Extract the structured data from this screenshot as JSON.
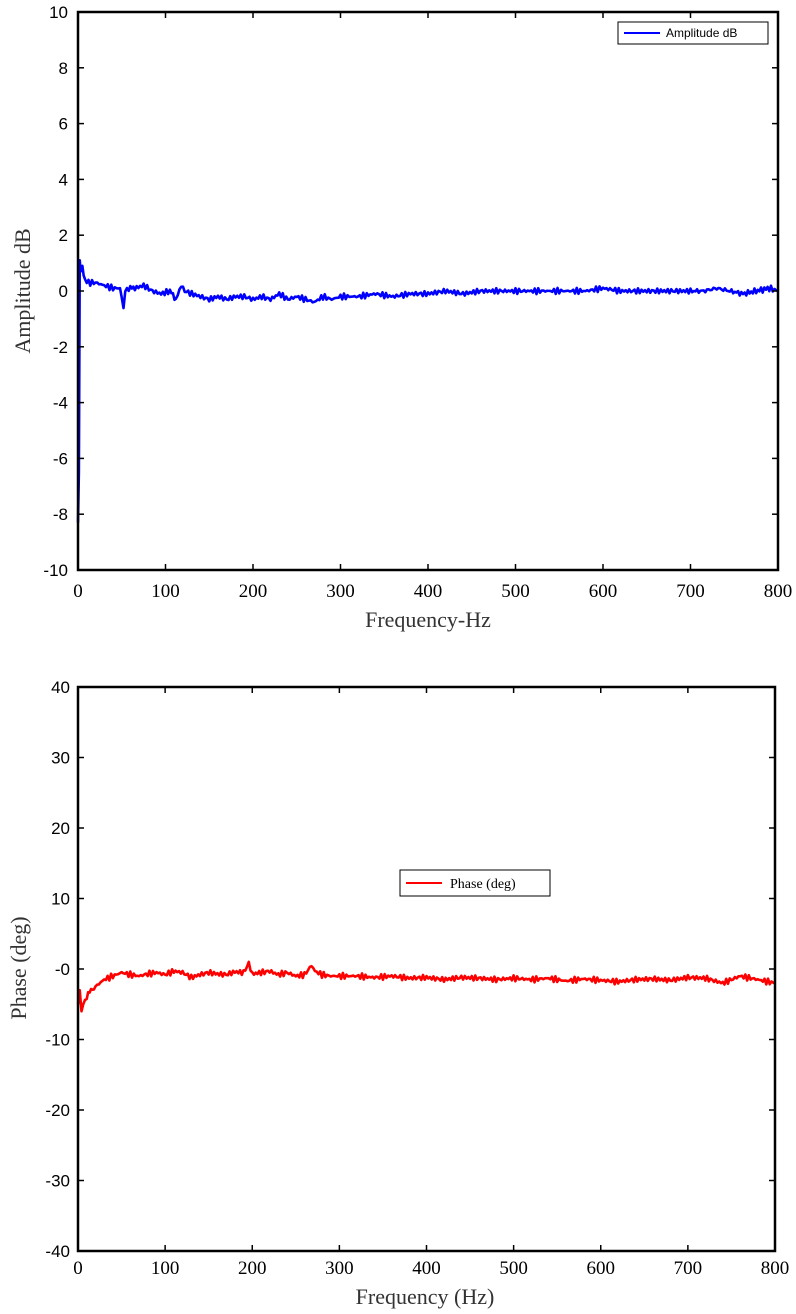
{
  "chart_data": [
    {
      "type": "line",
      "xlabel": "Frequency-Hz",
      "ylabel": "Amplitude dB",
      "xlim": [
        0,
        800
      ],
      "ylim": [
        -10,
        10
      ],
      "xticks": [
        "0",
        "100",
        "200",
        "300",
        "400",
        "500",
        "600",
        "700",
        "800"
      ],
      "yticks": [
        "-10",
        "-8",
        "-6",
        "-4",
        "-2",
        "0",
        "2",
        "4",
        "6",
        "8",
        "10"
      ],
      "grid": false,
      "legend": {
        "position": "top-right",
        "entries": [
          "Amplitude dB"
        ]
      },
      "series": [
        {
          "name": "Amplitude dB",
          "color": "#0000ff",
          "x": [
            0,
            1,
            2,
            3,
            5,
            8,
            12,
            20,
            30,
            40,
            48,
            52,
            54,
            58,
            65,
            75,
            85,
            95,
            105,
            112,
            118,
            122,
            130,
            140,
            150,
            160,
            170,
            180,
            190,
            200,
            210,
            220,
            230,
            240,
            250,
            260,
            270,
            280,
            290,
            300,
            320,
            340,
            360,
            380,
            400,
            420,
            440,
            460,
            480,
            500,
            520,
            540,
            560,
            580,
            600,
            620,
            640,
            660,
            680,
            700,
            715,
            730,
            745,
            760,
            775,
            790,
            800
          ],
          "y": [
            -8.3,
            -6.5,
            1.1,
            0.7,
            0.9,
            0.4,
            0.3,
            0.3,
            0.2,
            0.1,
            0.1,
            -0.6,
            0.0,
            0.1,
            0.1,
            0.2,
            0.0,
            -0.1,
            0.0,
            -0.3,
            0.2,
            0.0,
            -0.1,
            -0.2,
            -0.3,
            -0.2,
            -0.3,
            -0.2,
            -0.2,
            -0.3,
            -0.2,
            -0.3,
            -0.1,
            -0.3,
            -0.2,
            -0.3,
            -0.4,
            -0.2,
            -0.3,
            -0.2,
            -0.2,
            -0.1,
            -0.2,
            -0.1,
            -0.1,
            0.0,
            -0.1,
            0.0,
            0.0,
            0.0,
            0.0,
            0.0,
            0.0,
            0.0,
            0.1,
            0.0,
            0.0,
            0.0,
            0.0,
            0.0,
            0.0,
            0.1,
            0.0,
            -0.1,
            0.0,
            0.1,
            0.0
          ]
        }
      ]
    },
    {
      "type": "line",
      "xlabel": "Frequency (Hz)",
      "ylabel": "Phase (deg)",
      "xlim": [
        0,
        800
      ],
      "ylim": [
        -40,
        40
      ],
      "xticks": [
        "0",
        "100",
        "200",
        "300",
        "400",
        "500",
        "600",
        "700",
        "800"
      ],
      "yticks": [
        "-40",
        "-30",
        "-20",
        "-10",
        "-0",
        "10",
        "20",
        "30",
        "40"
      ],
      "grid": false,
      "legend": {
        "position": "center",
        "entries": [
          "Phase (deg)"
        ]
      },
      "series": [
        {
          "name": "Phase (deg)",
          "color": "#ff0000",
          "x": [
            0,
            2,
            4,
            6,
            10,
            15,
            20,
            30,
            40,
            50,
            60,
            70,
            80,
            90,
            100,
            110,
            120,
            130,
            140,
            150,
            160,
            170,
            180,
            190,
            196,
            200,
            210,
            220,
            230,
            240,
            250,
            260,
            268,
            272,
            280,
            290,
            300,
            320,
            340,
            360,
            380,
            400,
            420,
            440,
            460,
            480,
            500,
            520,
            540,
            560,
            580,
            600,
            620,
            640,
            660,
            680,
            700,
            720,
            740,
            760,
            780,
            800
          ],
          "y": [
            -5.0,
            -3.0,
            -6.0,
            -5.0,
            -4.0,
            -3.0,
            -2.5,
            -1.5,
            -1.0,
            -0.5,
            -0.8,
            -1.0,
            -0.7,
            -0.5,
            -0.8,
            -0.3,
            -0.5,
            -1.2,
            -0.8,
            -0.5,
            -0.7,
            -0.8,
            -0.4,
            -0.5,
            0.8,
            -0.7,
            -0.5,
            -0.3,
            -0.8,
            -0.5,
            -1.0,
            -0.8,
            0.5,
            -0.3,
            -0.8,
            -1.0,
            -1.0,
            -1.0,
            -1.2,
            -1.0,
            -1.3,
            -1.2,
            -1.5,
            -1.2,
            -1.3,
            -1.5,
            -1.3,
            -1.5,
            -1.3,
            -1.7,
            -1.4,
            -1.6,
            -1.8,
            -1.5,
            -1.4,
            -1.6,
            -1.2,
            -1.3,
            -2.0,
            -1.0,
            -1.5,
            -2.0
          ]
        }
      ]
    }
  ]
}
